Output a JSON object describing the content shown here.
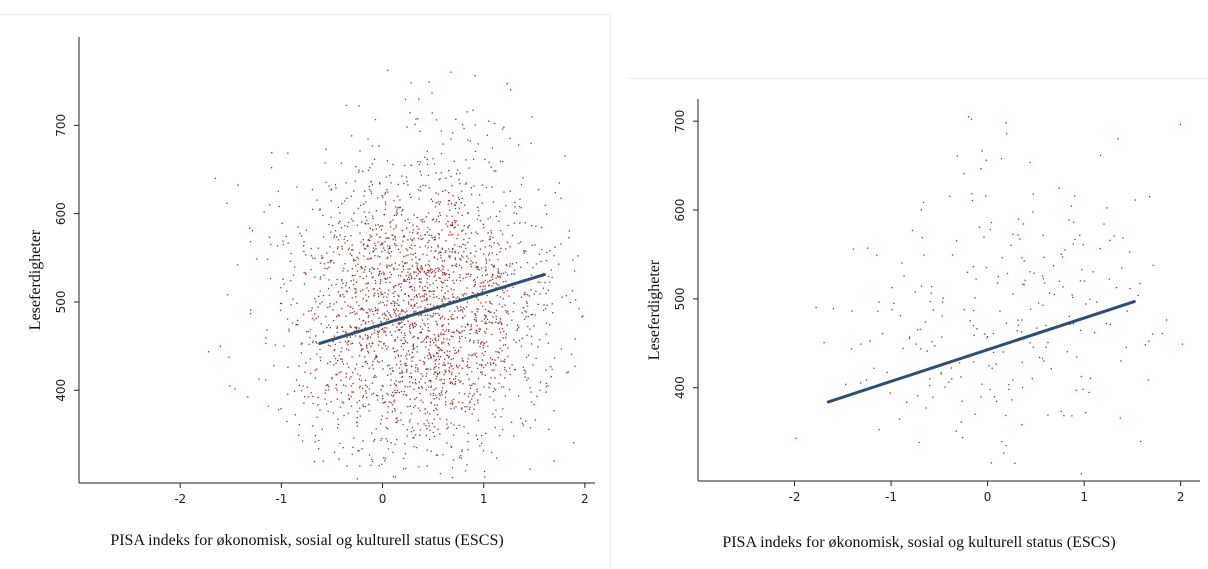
{
  "chart_data": [
    {
      "type": "scatter",
      "panel": "left",
      "title": "",
      "xlabel": "PISA indeks for økonomisk, sosial og kulturell status (ESCS)",
      "ylabel": "Leseferdigheter",
      "xlim": [
        -3.0,
        2.1
      ],
      "ylim": [
        295,
        800
      ],
      "xticks": [
        -2,
        -1,
        0,
        1,
        2
      ],
      "yticks": [
        400,
        500,
        600,
        700
      ],
      "grid": false,
      "legend": "none",
      "point_color": "#9b2d2d",
      "line_color": "#2c4f73",
      "point_cloud": {
        "count": 2600,
        "x_mean": 0.35,
        "x_sd": 0.65,
        "y_mean": 490,
        "y_sd": 88
      },
      "regression_line": {
        "x": [
          -0.62,
          1.6
        ],
        "y": [
          453,
          531
        ]
      }
    },
    {
      "type": "scatter",
      "panel": "right",
      "title": "",
      "xlabel": "PISA indeks for økonomisk, sosial og kulturell status (ESCS)",
      "ylabel": "Leseferdigheter",
      "xlim": [
        -3.0,
        2.2
      ],
      "ylim": [
        295,
        725
      ],
      "xticks": [
        -2,
        -1,
        0,
        1,
        2
      ],
      "yticks": [
        400,
        500,
        600,
        700
      ],
      "grid": false,
      "legend": "none",
      "point_color": "#9b2d2d",
      "line_color": "#2c4f73",
      "point_cloud": {
        "count": 260,
        "x_mean": 0.0,
        "x_sd": 0.95,
        "y_mean": 490,
        "y_sd": 95
      },
      "regression_line": {
        "x": [
          -1.65,
          1.52
        ],
        "y": [
          384,
          497
        ]
      }
    }
  ]
}
